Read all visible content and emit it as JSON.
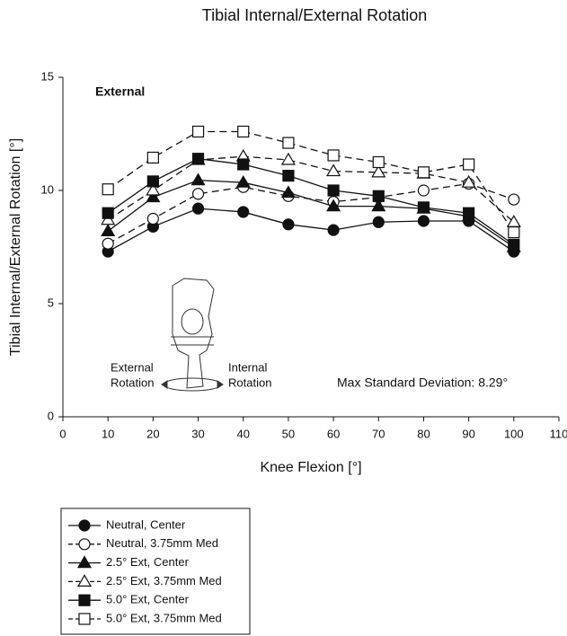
{
  "chart_data": {
    "type": "line",
    "title": "Tibial Internal/External Rotation",
    "x_label": "Knee Flexion [°]",
    "y_label": "Tibial Internal/External Rotation [°]",
    "x": [
      10,
      20,
      30,
      40,
      50,
      60,
      70,
      80,
      90,
      100
    ],
    "xlim": [
      0,
      110
    ],
    "xticks": [
      0,
      10,
      20,
      30,
      40,
      50,
      60,
      70,
      80,
      90,
      100,
      110
    ],
    "ylim": [
      0,
      15
    ],
    "yticks": [
      0,
      5,
      10,
      15
    ],
    "grid": false,
    "legend": "bottom-left",
    "annotations": [
      "External",
      "External",
      "Rotation",
      "Internal",
      "Rotation",
      "Max Standard Deviation: 8.29°"
    ],
    "series": [
      {
        "name": "Neutral, Center",
        "color": "#111111",
        "marker": "circle",
        "filled": true,
        "dashed": false,
        "values": [
          7.3,
          8.4,
          9.2,
          9.05,
          8.5,
          8.25,
          8.6,
          8.65,
          8.65,
          7.3
        ]
      },
      {
        "name": "Neutral, 3.75mm Med",
        "color": "#111111",
        "marker": "circle",
        "filled": false,
        "dashed": true,
        "values": [
          7.65,
          8.75,
          9.85,
          10.15,
          9.75,
          9.5,
          9.7,
          10.0,
          10.3,
          9.6
        ]
      },
      {
        "name": "2.5° Ext, Center",
        "color": "#111111",
        "marker": "triangle",
        "filled": true,
        "dashed": false,
        "values": [
          8.2,
          9.7,
          10.45,
          10.35,
          9.9,
          9.3,
          9.3,
          9.2,
          8.85,
          7.5
        ]
      },
      {
        "name": "2.5° Ext, 3.75mm Med",
        "color": "#111111",
        "marker": "triangle",
        "filled": false,
        "dashed": true,
        "values": [
          8.7,
          10.0,
          11.35,
          11.5,
          11.35,
          10.85,
          10.8,
          10.75,
          10.35,
          8.6
        ]
      },
      {
        "name": "5.0° Ext, Center",
        "color": "#111111",
        "marker": "square",
        "filled": true,
        "dashed": false,
        "values": [
          9.0,
          10.4,
          11.4,
          11.15,
          10.65,
          10.0,
          9.75,
          9.25,
          9.0,
          7.6
        ]
      },
      {
        "name": "5.0° Ext, 3.75mm Med",
        "color": "#111111",
        "marker": "square",
        "filled": false,
        "dashed": true,
        "values": [
          10.05,
          11.45,
          12.6,
          12.6,
          12.1,
          11.55,
          11.25,
          10.8,
          11.15,
          8.15
        ]
      }
    ]
  }
}
